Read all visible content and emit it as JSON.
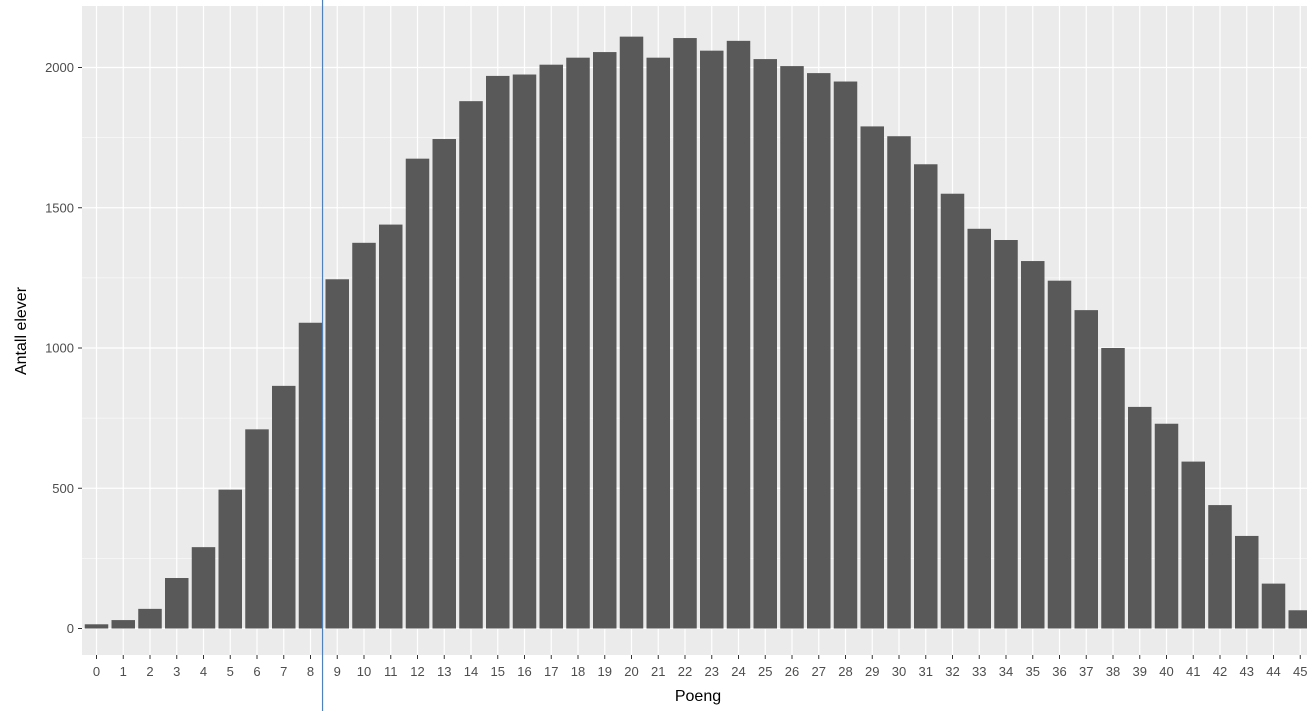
{
  "chart_data": {
    "type": "bar",
    "xlabel": "Poeng",
    "ylabel": "Antall elever",
    "categories": [
      "0",
      "1",
      "2",
      "3",
      "4",
      "5",
      "6",
      "7",
      "8",
      "9",
      "10",
      "11",
      "12",
      "13",
      "14",
      "15",
      "16",
      "17",
      "18",
      "19",
      "20",
      "21",
      "22",
      "23",
      "24",
      "25",
      "26",
      "27",
      "28",
      "29",
      "30",
      "31",
      "32",
      "33",
      "34",
      "35",
      "36",
      "37",
      "38",
      "39",
      "40",
      "41",
      "42",
      "43",
      "44",
      "45"
    ],
    "values": [
      15,
      30,
      70,
      180,
      290,
      495,
      710,
      865,
      1090,
      1245,
      1375,
      1440,
      1675,
      1745,
      1880,
      1970,
      1975,
      2010,
      2035,
      2055,
      2110,
      2035,
      2105,
      2060,
      2095,
      2030,
      2005,
      1980,
      1950,
      1790,
      1755,
      1655,
      1550,
      1425,
      1385,
      1310,
      1240,
      1135,
      1000,
      790,
      730,
      595,
      440,
      330,
      160,
      65
    ],
    "ylim": [
      -100,
      2200
    ],
    "yticks": [
      0,
      500,
      1000,
      1500,
      2000
    ],
    "vline_x": 8.45,
    "grid": true,
    "colors": {
      "panel": "#ebebeb",
      "grid": "#ffffff",
      "bar": "#595959",
      "vline": "#4f81bd"
    }
  }
}
